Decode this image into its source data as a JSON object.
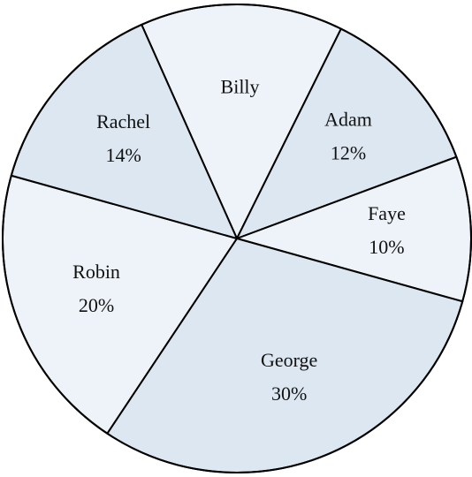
{
  "chart_data": {
    "type": "pie",
    "title": "",
    "slices": [
      {
        "name": "Billy",
        "value": 14,
        "show_percent": false,
        "color": "#edf3f9"
      },
      {
        "name": "Adam",
        "value": 12,
        "show_percent": true,
        "color": "#dce7f1"
      },
      {
        "name": "Faye",
        "value": 10,
        "show_percent": true,
        "color": "#edf3f9"
      },
      {
        "name": "George",
        "value": 30,
        "show_percent": true,
        "color": "#dce7f1"
      },
      {
        "name": "Robin",
        "value": 20,
        "show_percent": true,
        "color": "#edf3f9"
      },
      {
        "name": "Rachel",
        "value": 14,
        "show_percent": true,
        "color": "#dce7f1"
      }
    ],
    "value_unit": "%",
    "legend": "none",
    "edge_color": "#000000"
  }
}
